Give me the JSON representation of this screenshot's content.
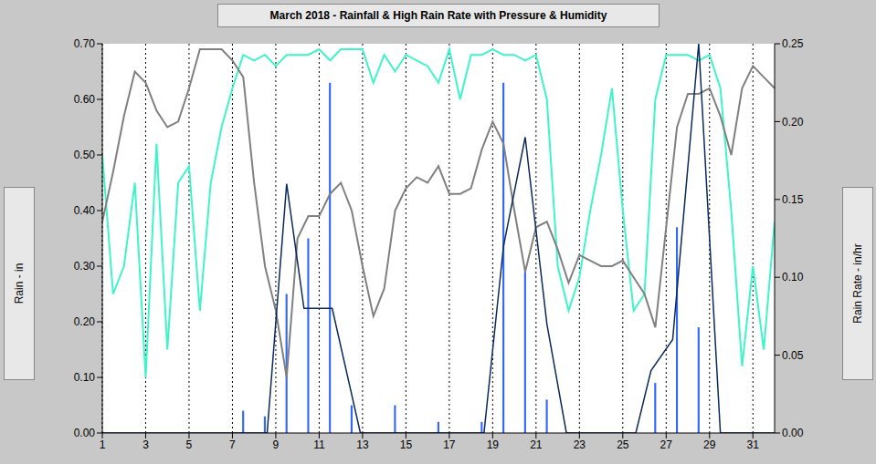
{
  "chart_data": {
    "type": "combo",
    "title": "March 2018 - Rainfall & High Rain Rate with Pressure & Humidity",
    "y_label": "Rain - in",
    "y2_label": "Rain Rate - in/hr",
    "xlim": [
      1,
      32
    ],
    "xticks": [
      1,
      3,
      5,
      7,
      9,
      11,
      13,
      15,
      17,
      19,
      21,
      23,
      25,
      27,
      29,
      31
    ],
    "ylim": [
      0,
      0.7
    ],
    "yticks": [
      {
        "value": 0,
        "label": "0.00"
      },
      {
        "value": 0.1,
        "label": "0.10"
      },
      {
        "value": 0.2,
        "label": "0.20"
      },
      {
        "value": 0.3,
        "label": "0.30"
      },
      {
        "value": 0.4,
        "label": "0.40"
      },
      {
        "value": 0.5,
        "label": "0.50"
      },
      {
        "value": 0.6,
        "label": "0.60"
      },
      {
        "value": 0.7,
        "label": "0.70"
      }
    ],
    "y2lim": [
      0,
      0.25
    ],
    "y2ticks": [
      {
        "value": 0,
        "label": "0.00"
      },
      {
        "value": 0.05,
        "label": "0.05"
      },
      {
        "value": 0.1,
        "label": "0.10"
      },
      {
        "value": 0.15,
        "label": "0.15"
      },
      {
        "value": 0.2,
        "label": "0.20"
      },
      {
        "value": 0.25,
        "label": "0.25"
      }
    ],
    "grid": true,
    "series": [
      {
        "name": "Humidity",
        "type": "line",
        "color": "#3df5c8",
        "x": [
          1,
          1.5,
          2,
          2.5,
          3,
          3.5,
          4,
          4.5,
          5,
          5.5,
          6,
          6.5,
          7,
          7.5,
          8,
          8.5,
          9,
          9.5,
          10,
          10.5,
          11,
          11.5,
          12,
          12.5,
          13,
          13.5,
          14,
          14.5,
          15,
          15.5,
          16,
          16.5,
          17,
          17.5,
          18,
          18.5,
          19,
          19.5,
          20,
          20.5,
          21,
          21.5,
          22,
          22.5,
          23,
          23.5,
          24,
          24.5,
          25,
          25.5,
          26,
          26.5,
          27,
          27.5,
          28,
          28.5,
          29,
          29.5,
          30,
          30.5,
          31,
          31.5,
          32
        ],
        "values": [
          0.5,
          0.25,
          0.3,
          0.45,
          0.1,
          0.52,
          0.15,
          0.45,
          0.48,
          0.22,
          0.45,
          0.55,
          0.62,
          0.68,
          0.67,
          0.68,
          0.66,
          0.68,
          0.68,
          0.68,
          0.69,
          0.67,
          0.69,
          0.69,
          0.69,
          0.63,
          0.68,
          0.65,
          0.68,
          0.67,
          0.66,
          0.63,
          0.69,
          0.6,
          0.68,
          0.68,
          0.69,
          0.68,
          0.68,
          0.67,
          0.68,
          0.6,
          0.3,
          0.22,
          0.28,
          0.4,
          0.5,
          0.62,
          0.4,
          0.22,
          0.25,
          0.6,
          0.68,
          0.68,
          0.68,
          0.67,
          0.68,
          0.62,
          0.4,
          0.12,
          0.3,
          0.15,
          0.38
        ]
      },
      {
        "name": "Pressure",
        "type": "line",
        "color": "#808080",
        "x": [
          1,
          1.5,
          2,
          2.5,
          3,
          3.5,
          4,
          4.5,
          5,
          5.5,
          6,
          6.5,
          7,
          7.5,
          8,
          8.5,
          9,
          9.5,
          10,
          10.5,
          11,
          11.5,
          12,
          12.5,
          13,
          13.5,
          14,
          14.5,
          15,
          15.5,
          16,
          16.5,
          17,
          17.5,
          18,
          18.5,
          19,
          19.5,
          20,
          20.5,
          21,
          21.5,
          22,
          22.5,
          23,
          23.5,
          24,
          24.5,
          25,
          25.5,
          26,
          26.5,
          27,
          27.5,
          28,
          28.5,
          29,
          29.5,
          30,
          30.5,
          31,
          31.5,
          32
        ],
        "values": [
          0.38,
          0.47,
          0.57,
          0.65,
          0.63,
          0.58,
          0.55,
          0.56,
          0.62,
          0.69,
          0.69,
          0.69,
          0.67,
          0.64,
          0.45,
          0.3,
          0.22,
          0.1,
          0.35,
          0.39,
          0.39,
          0.43,
          0.45,
          0.4,
          0.3,
          0.21,
          0.26,
          0.4,
          0.44,
          0.46,
          0.45,
          0.48,
          0.43,
          0.43,
          0.44,
          0.51,
          0.56,
          0.52,
          0.4,
          0.29,
          0.37,
          0.38,
          0.33,
          0.27,
          0.32,
          0.31,
          0.3,
          0.3,
          0.31,
          0.28,
          0.25,
          0.19,
          0.37,
          0.55,
          0.61,
          0.61,
          0.62,
          0.57,
          0.5,
          0.62,
          0.66,
          0.64,
          0.62
        ]
      },
      {
        "name": "Rain",
        "type": "bar",
        "color": "#3366ff",
        "x": [
          1.5,
          2.5,
          3.5,
          4.5,
          5.5,
          6.5,
          7.5,
          8.5,
          9.5,
          10.5,
          11.5,
          12.5,
          13.5,
          14.5,
          15.5,
          16.5,
          17.5,
          18.5,
          19.5,
          20.5,
          21.5,
          22.5,
          23.5,
          24.5,
          25.5,
          26.5,
          27.5,
          28.5,
          29.5,
          30.5,
          31.5
        ],
        "values": [
          0,
          0,
          0,
          0,
          0,
          0,
          0.04,
          0.03,
          0.25,
          0.35,
          0.63,
          0.05,
          0,
          0.05,
          0,
          0.02,
          0,
          0.02,
          0.63,
          0.29,
          0.06,
          0,
          0,
          0,
          0,
          0.09,
          0.37,
          0.19,
          0,
          0,
          0
        ]
      },
      {
        "name": "Rain Rate",
        "type": "line",
        "axis": "y2",
        "color": "#0a2a5a",
        "x": [
          1,
          8.6,
          9.5,
          10.3,
          11.6,
          12.9,
          18.6,
          19.5,
          20.5,
          21.5,
          22.4,
          25.6,
          26.3,
          27.3,
          28.5,
          29.5,
          32
        ],
        "values": [
          0,
          0,
          0.16,
          0.08,
          0.08,
          0,
          0,
          0.12,
          0.19,
          0.07,
          0,
          0,
          0.04,
          0.06,
          0.25,
          0,
          0
        ]
      }
    ]
  }
}
